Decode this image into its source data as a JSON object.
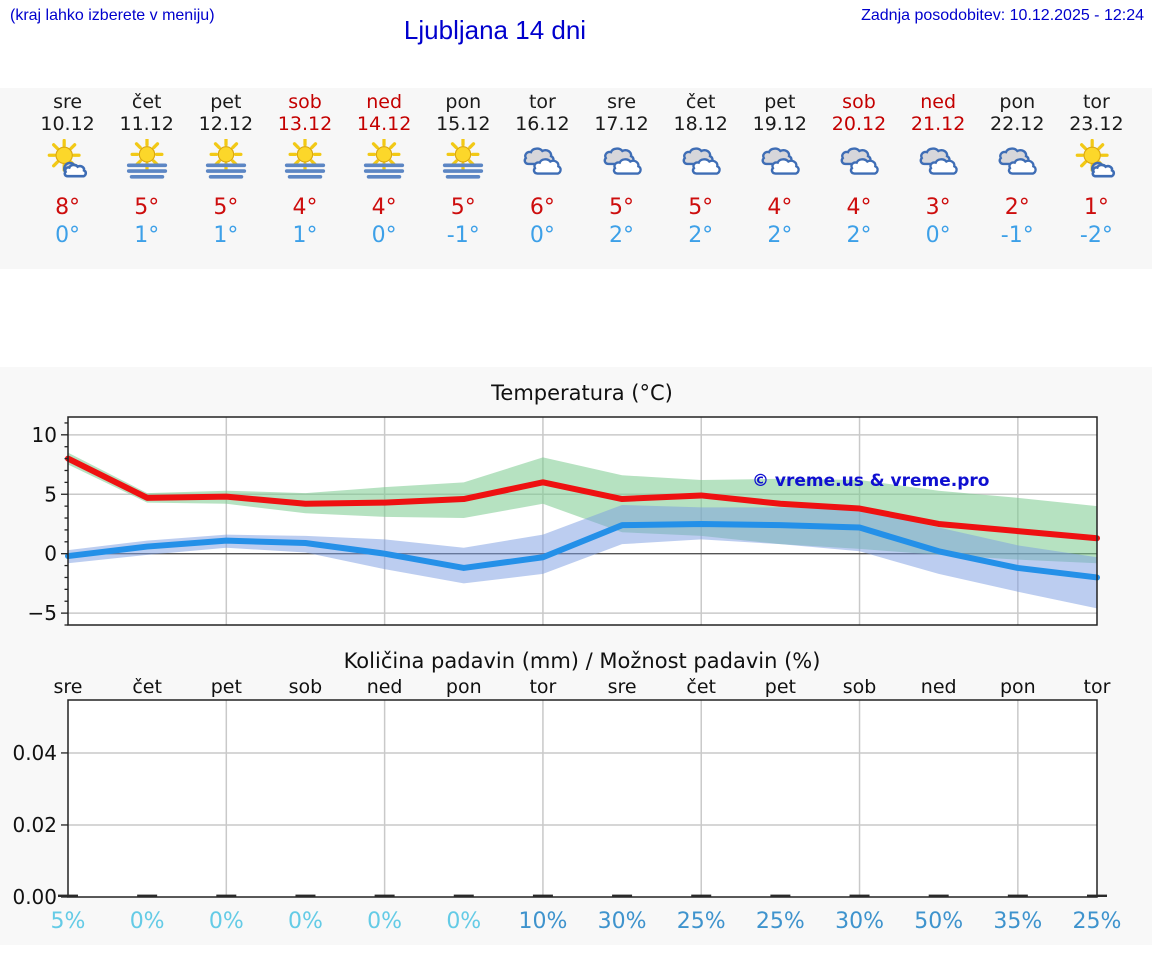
{
  "header": {
    "hint": "(kraj lahko izberete v meniju)",
    "title": "Ljubljana 14 dni",
    "updated": "Zadnja posodobitev: 10.12.2025 - 12:24"
  },
  "watermark": "© vreme.us & vreme.pro",
  "colors": {
    "header_text": "#0000cd",
    "weekend_red": "#c40000",
    "high_temp": "#cd0d0d",
    "low_temp": "#3da0e8",
    "prob_low": "#64cbe6",
    "prob_mid": "#3e93cd"
  },
  "forecast": {
    "days": [
      {
        "name": "sre",
        "date": "10.12",
        "weekend": false,
        "icon": "sun-cloud",
        "high": "8°",
        "low": "0°"
      },
      {
        "name": "čet",
        "date": "11.12",
        "weekend": false,
        "icon": "sun-fog",
        "high": "5°",
        "low": "1°"
      },
      {
        "name": "pet",
        "date": "12.12",
        "weekend": false,
        "icon": "sun-fog",
        "high": "5°",
        "low": "1°"
      },
      {
        "name": "sob",
        "date": "13.12",
        "weekend": true,
        "icon": "sun-fog",
        "high": "4°",
        "low": "1°"
      },
      {
        "name": "ned",
        "date": "14.12",
        "weekend": true,
        "icon": "sun-fog",
        "high": "4°",
        "low": "0°"
      },
      {
        "name": "pon",
        "date": "15.12",
        "weekend": false,
        "icon": "sun-fog",
        "high": "5°",
        "low": "-1°"
      },
      {
        "name": "tor",
        "date": "16.12",
        "weekend": false,
        "icon": "cloudy",
        "high": "6°",
        "low": "0°"
      },
      {
        "name": "sre",
        "date": "17.12",
        "weekend": false,
        "icon": "cloudy",
        "high": "5°",
        "low": "2°"
      },
      {
        "name": "čet",
        "date": "18.12",
        "weekend": false,
        "icon": "cloudy",
        "high": "5°",
        "low": "2°"
      },
      {
        "name": "pet",
        "date": "19.12",
        "weekend": false,
        "icon": "cloudy",
        "high": "4°",
        "low": "2°"
      },
      {
        "name": "sob",
        "date": "20.12",
        "weekend": true,
        "icon": "cloudy",
        "high": "4°",
        "low": "2°"
      },
      {
        "name": "ned",
        "date": "21.12",
        "weekend": true,
        "icon": "cloudy",
        "high": "3°",
        "low": "0°"
      },
      {
        "name": "pon",
        "date": "22.12",
        "weekend": false,
        "icon": "cloudy",
        "high": "2°",
        "low": "-1°"
      },
      {
        "name": "tor",
        "date": "23.12",
        "weekend": false,
        "icon": "sun-cloud",
        "high": "1°",
        "low": "-2°"
      }
    ]
  },
  "chart_data": [
    {
      "type": "line",
      "title": "Temperatura (°C)",
      "x": [
        "10.12",
        "11.12",
        "12.12",
        "13.12",
        "14.12",
        "15.12",
        "16.12",
        "17.12",
        "18.12",
        "19.12",
        "20.12",
        "21.12",
        "22.12",
        "23.12"
      ],
      "ylim": [
        -6,
        11.5
      ],
      "yticks": [
        -5,
        0,
        5,
        10
      ],
      "grid_x_indices": [
        2,
        4,
        6,
        8,
        10,
        12
      ],
      "series": [
        {
          "name": "temperatura max",
          "color": "#ee1111",
          "values": [
            8.0,
            4.7,
            4.8,
            4.2,
            4.3,
            4.6,
            6.0,
            4.6,
            4.9,
            4.2,
            3.8,
            2.5,
            1.9,
            1.3
          ]
        },
        {
          "name": "temperatura min",
          "color": "#2490e8",
          "values": [
            -0.2,
            0.6,
            1.1,
            0.9,
            0.0,
            -1.2,
            -0.3,
            2.4,
            2.5,
            2.4,
            2.2,
            0.2,
            -1.2,
            -2.0
          ]
        }
      ],
      "bands": [
        {
          "name": "razpon max",
          "color": "rgba(122,202,142,0.55)",
          "upper": [
            8.5,
            5.1,
            5.3,
            5.1,
            5.6,
            6.0,
            8.1,
            6.6,
            6.2,
            6.3,
            6.2,
            5.3,
            4.7,
            4.0
          ],
          "lower": [
            7.5,
            4.3,
            4.2,
            3.4,
            3.1,
            3.0,
            4.2,
            1.8,
            1.5,
            0.8,
            0.4,
            -0.1,
            -0.5,
            -0.8
          ]
        },
        {
          "name": "razpon min",
          "color": "rgba(122,155,225,0.5)",
          "upper": [
            0.3,
            1.1,
            1.6,
            1.5,
            1.2,
            0.5,
            1.6,
            4.1,
            3.9,
            3.9,
            3.7,
            2.2,
            0.7,
            -0.3
          ],
          "lower": [
            -0.8,
            -0.1,
            0.5,
            0.1,
            -1.3,
            -2.5,
            -1.7,
            0.8,
            1.2,
            0.8,
            0.2,
            -1.7,
            -3.2,
            -4.6
          ]
        }
      ]
    },
    {
      "type": "bar",
      "title": "Količina padavin (mm) / Možnost padavin (%)",
      "categories": [
        "sre",
        "čet",
        "pet",
        "sob",
        "ned",
        "pon",
        "tor",
        "sre",
        "čet",
        "pet",
        "sob",
        "ned",
        "pon",
        "tor"
      ],
      "values": [
        0,
        0,
        0,
        0,
        0,
        0,
        0,
        0,
        0,
        0,
        0,
        0,
        0,
        0
      ],
      "ylim": [
        0,
        0.0547
      ],
      "yticks": [
        "0.00",
        "0.02",
        "0.04"
      ],
      "grid_x_indices": [
        2,
        4,
        6,
        8,
        10,
        12
      ],
      "prob_labels": [
        {
          "text": "5%",
          "level": "low"
        },
        {
          "text": "0%",
          "level": "low"
        },
        {
          "text": "0%",
          "level": "low"
        },
        {
          "text": "0%",
          "level": "low"
        },
        {
          "text": "0%",
          "level": "low"
        },
        {
          "text": "0%",
          "level": "low"
        },
        {
          "text": "10%",
          "level": "mid"
        },
        {
          "text": "30%",
          "level": "mid"
        },
        {
          "text": "25%",
          "level": "mid"
        },
        {
          "text": "25%",
          "level": "mid"
        },
        {
          "text": "30%",
          "level": "mid"
        },
        {
          "text": "50%",
          "level": "mid"
        },
        {
          "text": "35%",
          "level": "mid"
        },
        {
          "text": "25%",
          "level": "mid"
        }
      ]
    }
  ]
}
